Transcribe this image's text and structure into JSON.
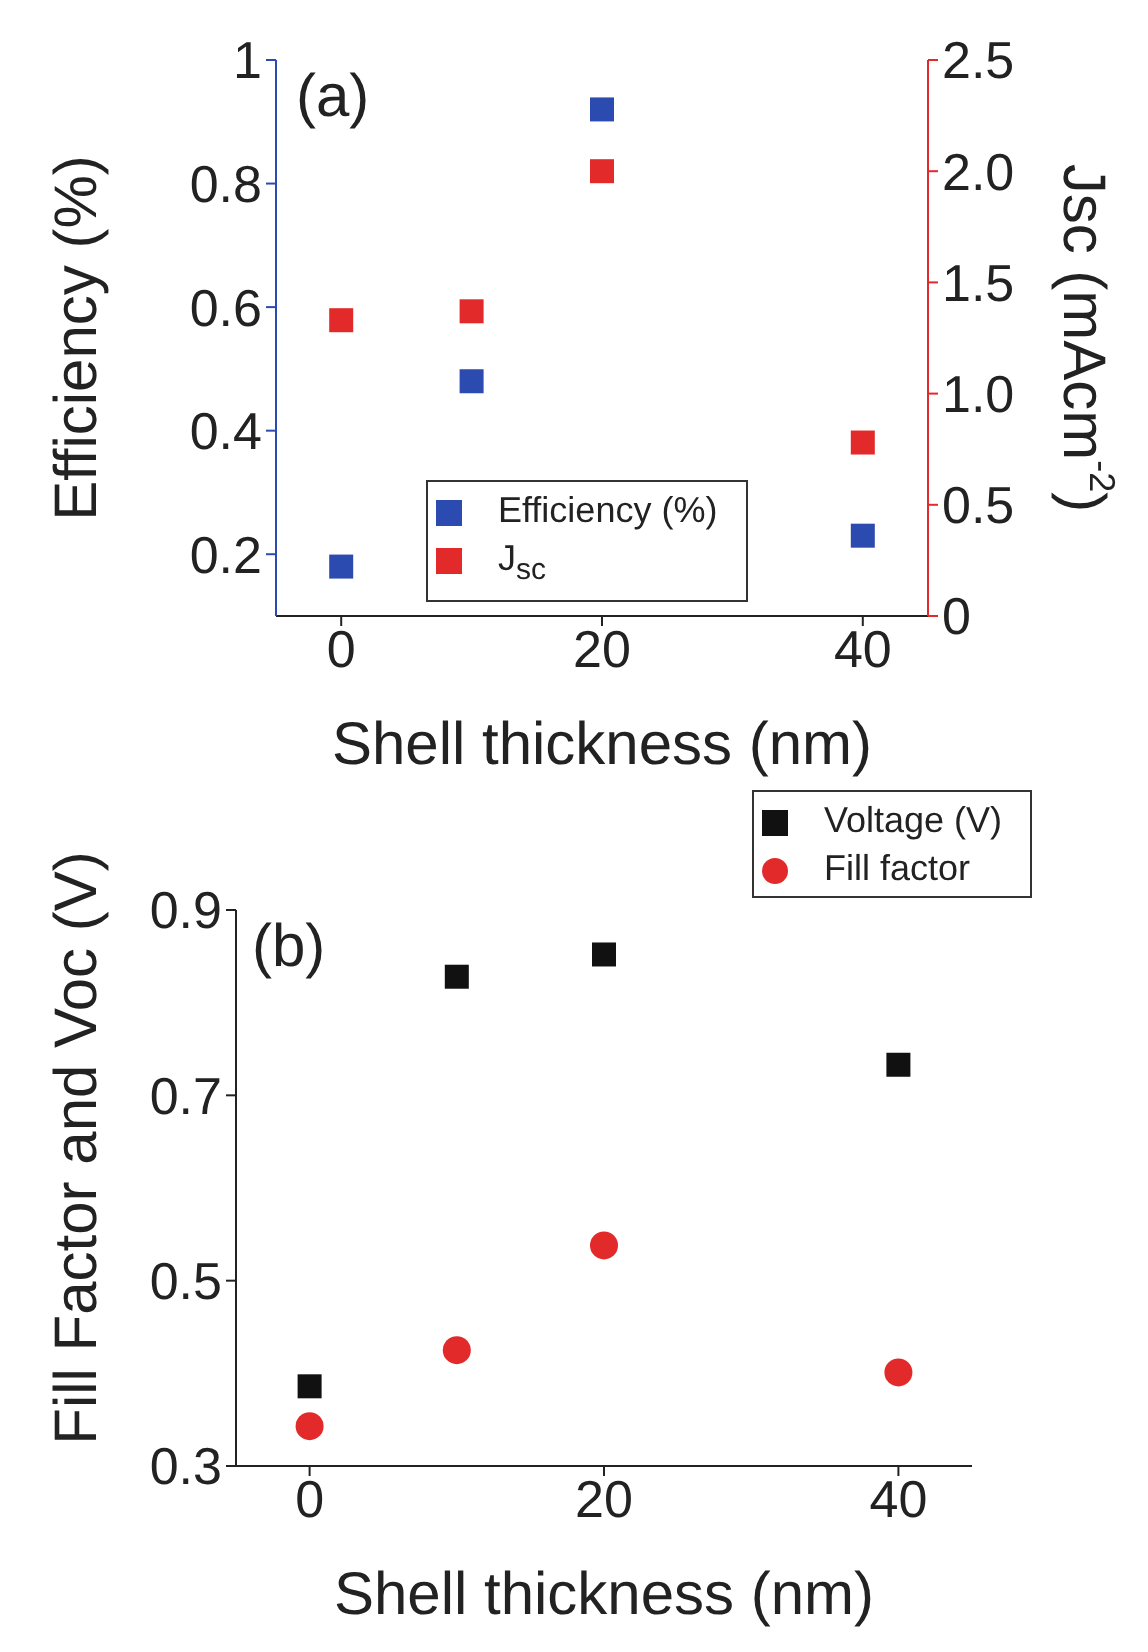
{
  "chart_data": [
    {
      "type": "scatter",
      "xlabel": "Shell thickness (nm)",
      "ylabel": "Efficiency (%)",
      "y2label": "Jsc (mAcm$^{-2}$)",
      "annotations": [
        "(a)"
      ],
      "xlim": [
        -5,
        45
      ],
      "xticks": [
        0,
        20,
        40
      ],
      "ylim": [
        0.1,
        1
      ],
      "yticks": [
        0.2,
        0.4,
        0.6,
        0.8,
        1
      ],
      "y2lim": [
        0,
        2.5
      ],
      "y2ticks": [
        0,
        {
          "value": 0.5,
          "label": "0.5"
        },
        {
          "value": 1,
          "label": "1.0"
        },
        {
          "value": 1.5,
          "label": "1.5"
        },
        {
          "value": 2,
          "label": "2.0"
        },
        {
          "value": 2.5,
          "label": "2.5"
        }
      ],
      "x": [
        0,
        10,
        20,
        40
      ],
      "marker": "square",
      "legend": "bottom right",
      "grid": false,
      "series": [
        {
          "name": "Efficiency (%)",
          "color": "#2c4bb0",
          "values": [
            0.18,
            0.48,
            0.92,
            0.23
          ]
        },
        {
          "name": "J$_{sc}$",
          "color": "#e32a2a",
          "axis": "y2",
          "values": [
            1.33,
            1.37,
            2.0,
            0.78
          ]
        }
      ]
    },
    {
      "type": "scatter",
      "xlabel": "Shell thickness (nm)",
      "ylabel": "Fill Factor and Voc (V)",
      "annotations": [
        "(b)"
      ],
      "xlim": [
        -5,
        45
      ],
      "xticks": [
        0,
        20,
        40
      ],
      "ylim": [
        0.3,
        0.9
      ],
      "yticks": [
        0.3,
        0.5,
        0.7,
        0.9
      ],
      "x": [
        0,
        10,
        20,
        40
      ],
      "legend": "top right",
      "grid": false,
      "series": [
        {
          "name": "Voltage (V)",
          "color": "#111111",
          "marker": "square",
          "values": [
            0.386,
            0.828,
            0.852,
            0.733
          ]
        },
        {
          "name": "Fill factor",
          "color": "#e32a2a",
          "marker": "circle",
          "values": [
            0.343,
            0.425,
            0.538,
            0.401
          ]
        }
      ]
    }
  ]
}
